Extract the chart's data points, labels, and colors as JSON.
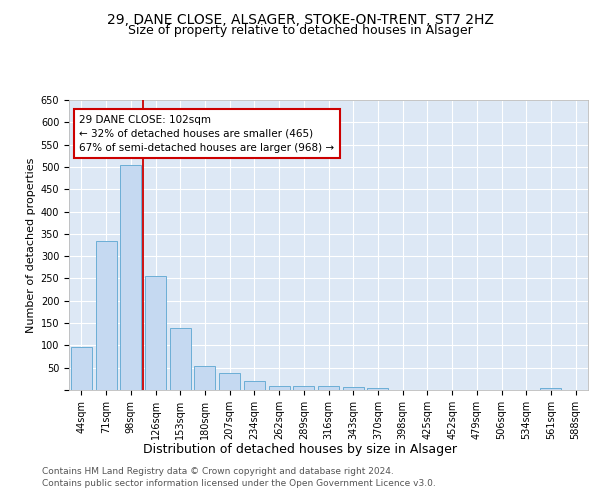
{
  "title1": "29, DANE CLOSE, ALSAGER, STOKE-ON-TRENT, ST7 2HZ",
  "title2": "Size of property relative to detached houses in Alsager",
  "xlabel": "Distribution of detached houses by size in Alsager",
  "ylabel": "Number of detached properties",
  "categories": [
    "44sqm",
    "71sqm",
    "98sqm",
    "126sqm",
    "153sqm",
    "180sqm",
    "207sqm",
    "234sqm",
    "262sqm",
    "289sqm",
    "316sqm",
    "343sqm",
    "370sqm",
    "398sqm",
    "425sqm",
    "452sqm",
    "479sqm",
    "506sqm",
    "534sqm",
    "561sqm",
    "588sqm"
  ],
  "values": [
    97,
    333,
    505,
    255,
    138,
    53,
    37,
    21,
    10,
    10,
    10,
    7,
    5,
    0,
    0,
    0,
    0,
    0,
    0,
    5,
    0
  ],
  "bar_color": "#c5d9f1",
  "bar_edge_color": "#6baed6",
  "vline_x_index": 2,
  "vline_color": "#cc0000",
  "annotation_text": "29 DANE CLOSE: 102sqm\n← 32% of detached houses are smaller (465)\n67% of semi-detached houses are larger (968) →",
  "annotation_box_color": "white",
  "annotation_box_edge": "#cc0000",
  "ylim": [
    0,
    650
  ],
  "yticks": [
    0,
    50,
    100,
    150,
    200,
    250,
    300,
    350,
    400,
    450,
    500,
    550,
    600,
    650
  ],
  "footer1": "Contains HM Land Registry data © Crown copyright and database right 2024.",
  "footer2": "Contains public sector information licensed under the Open Government Licence v3.0.",
  "bg_color": "#dde8f5",
  "fig_bg_color": "#ffffff",
  "title1_fontsize": 10,
  "title2_fontsize": 9,
  "xlabel_fontsize": 9,
  "ylabel_fontsize": 8,
  "tick_fontsize": 7,
  "footer_fontsize": 6.5,
  "annotation_fontsize": 7.5
}
